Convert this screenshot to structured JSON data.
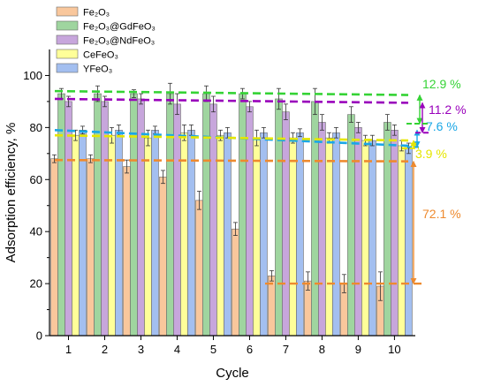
{
  "chart_data": {
    "type": "bar",
    "xlabel": "Cycle",
    "ylabel": "Adsorption efficiency, %",
    "ylim": [
      0,
      110
    ],
    "yticks": [
      0,
      20,
      40,
      60,
      80,
      100
    ],
    "categories": [
      "1",
      "2",
      "3",
      "4",
      "5",
      "6",
      "7",
      "8",
      "9",
      "10"
    ],
    "grid": false,
    "legend_position": "top-left",
    "series": [
      {
        "name": "Fe2O3",
        "label": "Fe₂O₃",
        "color": "#f9c79c",
        "values": [
          68,
          68,
          65,
          61,
          52,
          41,
          23,
          21,
          20,
          19
        ],
        "errors": [
          1.5,
          1.5,
          2.5,
          2.5,
          3.5,
          2.5,
          2,
          3.5,
          3.5,
          5.5
        ]
      },
      {
        "name": "Fe2O3@GdFeO3",
        "label": "Fe₂O₃@GdFeO₃",
        "color": "#9fd59f",
        "values": [
          93,
          93,
          93,
          93,
          93,
          93,
          91,
          90,
          85,
          82
        ],
        "errors": [
          2,
          3,
          1.5,
          4,
          3,
          2,
          4,
          5,
          3,
          3
        ]
      },
      {
        "name": "Fe2O3@NdFeO3",
        "label": "Fe₂O₃@NdFeO₃",
        "color": "#c7a6dc",
        "values": [
          90,
          90,
          91,
          89,
          89,
          88,
          86,
          82,
          80,
          79
        ],
        "errors": [
          2,
          2,
          2,
          4,
          3,
          2,
          3,
          3,
          2,
          2
        ]
      },
      {
        "name": "CeFeO3",
        "label": "CeFeO₃",
        "color": "#ffff99",
        "values": [
          77,
          77,
          76,
          78,
          77,
          76,
          76,
          76,
          75,
          73
        ],
        "errors": [
          2,
          3,
          3,
          3,
          2,
          3,
          2,
          2,
          2,
          2
        ]
      },
      {
        "name": "YFeO3",
        "label": "YFeO₃",
        "color": "#a3bff0",
        "values": [
          79,
          79,
          79,
          79,
          78,
          78,
          78,
          78,
          75,
          72
        ],
        "errors": [
          1.5,
          2,
          1.5,
          2,
          2,
          2,
          1.5,
          2,
          2,
          2
        ]
      }
    ],
    "reference_lines": [
      {
        "name": "GdFeO3-trend",
        "color": "#35d335",
        "y_start": 94,
        "y_end": 92.5
      },
      {
        "name": "NdFeO3-trend",
        "color": "#9900bb",
        "y_start": 91,
        "y_end": 89.5
      },
      {
        "name": "YFeO3-trend",
        "color": "#1aa7e6",
        "y_start": 79,
        "y_end": 73
      },
      {
        "name": "CeFeO3-trend",
        "color": "#e6e600",
        "y_start": 77,
        "y_end": 75
      },
      {
        "name": "Fe2O3-trend",
        "color": "#ee8a2e",
        "y_start": 67.5,
        "y_end": 67
      }
    ],
    "annotations": [
      {
        "text": "12.9 %",
        "color": "#35d335",
        "y_top": 92.5,
        "y_bottom": 81.5
      },
      {
        "text": "11.2 %",
        "color": "#9900bb",
        "y_top": 89.5,
        "y_bottom": 78
      },
      {
        "text": "7.6 %",
        "color": "#1aa7e6",
        "y_top": 79,
        "y_bottom": 72.5
      },
      {
        "text": "3.9 %",
        "color": "#e6e600",
        "y_top": 75,
        "y_bottom": 72
      },
      {
        "text": "72.1 %",
        "color": "#ee8a2e",
        "y_top": 67,
        "y_bottom": 20
      }
    ]
  }
}
